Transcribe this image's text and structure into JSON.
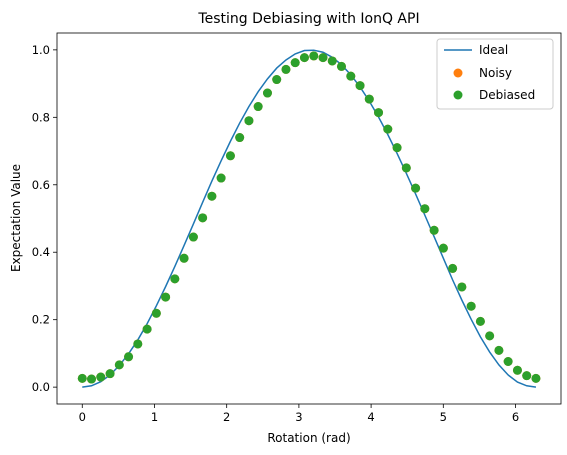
{
  "chart_data": {
    "type": "line",
    "title": "Testing Debiasing with IonQ API",
    "xlabel": "Rotation (rad)",
    "ylabel": "Expectation Value",
    "xlim": [
      -0.35,
      6.63
    ],
    "ylim": [
      -0.05,
      1.05
    ],
    "xticks": [
      0,
      1,
      2,
      3,
      4,
      5,
      6
    ],
    "yticks": [
      0.0,
      0.2,
      0.4,
      0.6,
      0.8,
      1.0
    ],
    "xtick_labels": [
      "0",
      "1",
      "2",
      "3",
      "4",
      "5",
      "6"
    ],
    "ytick_labels": [
      "0.0",
      "0.2",
      "0.4",
      "0.6",
      "0.8",
      "1.0"
    ],
    "grid": false,
    "legend": {
      "position": "upper right"
    },
    "series": [
      {
        "name": "Ideal",
        "kind": "line",
        "color": "#1f77b4",
        "x": [
          0.0,
          0.128,
          0.256,
          0.385,
          0.513,
          0.641,
          0.769,
          0.898,
          1.026,
          1.154,
          1.282,
          1.41,
          1.539,
          1.667,
          1.795,
          1.923,
          2.052,
          2.18,
          2.308,
          2.436,
          2.565,
          2.693,
          2.821,
          2.949,
          3.077,
          3.206,
          3.334,
          3.462,
          3.59,
          3.719,
          3.847,
          3.975,
          4.103,
          4.231,
          4.36,
          4.488,
          4.616,
          4.744,
          4.873,
          5.001,
          5.129,
          5.257,
          5.386,
          5.514,
          5.642,
          5.77,
          5.898,
          6.027,
          6.155,
          6.283
        ],
        "y": [
          0.0,
          0.004,
          0.016,
          0.036,
          0.064,
          0.099,
          0.14,
          0.188,
          0.241,
          0.298,
          0.358,
          0.42,
          0.484,
          0.548,
          0.611,
          0.671,
          0.729,
          0.783,
          0.832,
          0.876,
          0.914,
          0.946,
          0.97,
          0.988,
          0.998,
          0.999,
          0.993,
          0.978,
          0.956,
          0.926,
          0.89,
          0.848,
          0.801,
          0.749,
          0.693,
          0.634,
          0.573,
          0.51,
          0.446,
          0.382,
          0.318,
          0.258,
          0.201,
          0.149,
          0.104,
          0.066,
          0.036,
          0.015,
          0.004,
          0.0
        ]
      },
      {
        "name": "Noisy",
        "kind": "scatter",
        "color": "#ff7f0e",
        "x": [
          0.0,
          0.128,
          0.256,
          0.385,
          0.513,
          0.641,
          0.769,
          0.898,
          1.026,
          1.154,
          1.282,
          1.41,
          1.539,
          1.667,
          1.795,
          1.923,
          2.052,
          2.18,
          2.308,
          2.436,
          2.565,
          2.693,
          2.821,
          2.949,
          3.077,
          3.206,
          3.334,
          3.462,
          3.59,
          3.719,
          3.847,
          3.975,
          4.103,
          4.231,
          4.36,
          4.488,
          4.616,
          4.744,
          4.873,
          5.001,
          5.129,
          5.257,
          5.386,
          5.514,
          5.642,
          5.77,
          5.898,
          6.027,
          6.155,
          6.283
        ],
        "y": [
          0.026,
          0.024,
          0.03,
          0.04,
          0.066,
          0.09,
          0.128,
          0.172,
          0.219,
          0.267,
          0.321,
          0.382,
          0.445,
          0.502,
          0.566,
          0.62,
          0.686,
          0.74,
          0.79,
          0.832,
          0.872,
          0.912,
          0.942,
          0.962,
          0.977,
          0.982,
          0.977,
          0.967,
          0.951,
          0.922,
          0.894,
          0.854,
          0.814,
          0.765,
          0.71,
          0.65,
          0.59,
          0.529,
          0.465,
          0.412,
          0.352,
          0.297,
          0.24,
          0.195,
          0.152,
          0.109,
          0.076,
          0.05,
          0.034,
          0.026
        ]
      },
      {
        "name": "Debiased",
        "kind": "scatter",
        "color": "#2ca02c",
        "x": [
          0.0,
          0.128,
          0.256,
          0.385,
          0.513,
          0.641,
          0.769,
          0.898,
          1.026,
          1.154,
          1.282,
          1.41,
          1.539,
          1.667,
          1.795,
          1.923,
          2.052,
          2.18,
          2.308,
          2.436,
          2.565,
          2.693,
          2.821,
          2.949,
          3.077,
          3.206,
          3.334,
          3.462,
          3.59,
          3.719,
          3.847,
          3.975,
          4.103,
          4.231,
          4.36,
          4.488,
          4.616,
          4.744,
          4.873,
          5.001,
          5.129,
          5.257,
          5.386,
          5.514,
          5.642,
          5.77,
          5.898,
          6.027,
          6.155,
          6.283
        ],
        "y": [
          0.026,
          0.024,
          0.03,
          0.04,
          0.066,
          0.09,
          0.128,
          0.172,
          0.219,
          0.267,
          0.321,
          0.382,
          0.445,
          0.502,
          0.566,
          0.62,
          0.686,
          0.74,
          0.79,
          0.832,
          0.872,
          0.912,
          0.942,
          0.962,
          0.977,
          0.982,
          0.977,
          0.967,
          0.951,
          0.922,
          0.894,
          0.854,
          0.814,
          0.765,
          0.71,
          0.65,
          0.59,
          0.529,
          0.465,
          0.412,
          0.352,
          0.297,
          0.24,
          0.195,
          0.152,
          0.109,
          0.076,
          0.05,
          0.034,
          0.026
        ]
      }
    ]
  }
}
